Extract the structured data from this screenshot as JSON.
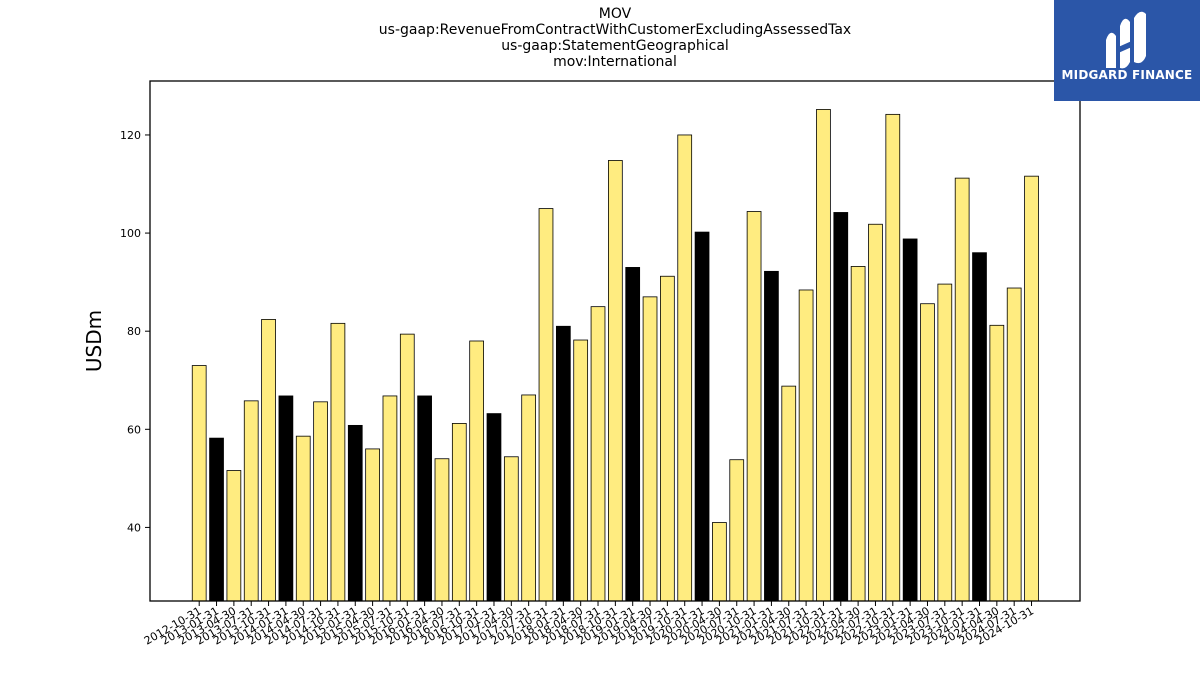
{
  "chart_data": {
    "type": "bar",
    "title_lines": [
      "MOV",
      "us-gaap:RevenueFromContractWithCustomerExcludingAssessedTax",
      "us-gaap:StatementGeographical",
      "mov:International"
    ],
    "xlabel": "",
    "ylabel": "USDm",
    "ylim": [
      25,
      131
    ],
    "yticks": [
      40,
      60,
      80,
      100,
      120
    ],
    "grid": false,
    "legend": "none",
    "colors": {
      "default": "#ffec80",
      "highlight": "#000000",
      "edge": "#000000"
    },
    "categories": [
      "2012-10-31",
      "2013-01-31",
      "2013-04-30",
      "2013-07-31",
      "2013-10-31",
      "2014-01-31",
      "2014-04-30",
      "2014-07-31",
      "2014-10-31",
      "2015-01-31",
      "2015-04-30",
      "2015-07-31",
      "2015-10-31",
      "2016-01-31",
      "2016-04-30",
      "2016-07-31",
      "2016-10-31",
      "2017-01-31",
      "2017-04-30",
      "2017-07-31",
      "2017-10-31",
      "2018-01-31",
      "2018-04-30",
      "2018-07-31",
      "2018-10-31",
      "2019-01-31",
      "2019-04-30",
      "2019-07-31",
      "2019-10-31",
      "2020-01-31",
      "2020-04-30",
      "2020-07-31",
      "2020-10-31",
      "2021-01-31",
      "2021-04-30",
      "2021-07-31",
      "2021-10-31",
      "2022-01-31",
      "2022-04-30",
      "2022-07-31",
      "2022-10-31",
      "2023-01-31",
      "2023-04-30",
      "2023-07-31",
      "2023-10-31",
      "2024-01-31",
      "2024-04-30",
      "2024-07-31",
      "2024-10-31"
    ],
    "values": [
      73.0,
      58.2,
      51.6,
      65.8,
      82.4,
      66.8,
      58.6,
      65.6,
      81.6,
      60.8,
      56.0,
      66.8,
      79.4,
      66.8,
      54.0,
      61.2,
      78.0,
      63.2,
      54.4,
      67.0,
      105.0,
      81.0,
      78.2,
      85.0,
      114.8,
      93.0,
      87.0,
      91.2,
      120.0,
      100.2,
      41.0,
      53.8,
      104.4,
      92.2,
      68.8,
      88.4,
      125.2,
      104.2,
      93.2,
      101.8,
      124.2,
      98.8,
      85.6,
      89.6,
      111.2,
      96.0,
      81.2,
      88.8,
      111.6
    ],
    "highlight": [
      false,
      true,
      false,
      false,
      false,
      true,
      false,
      false,
      false,
      true,
      false,
      false,
      false,
      true,
      false,
      false,
      false,
      true,
      false,
      false,
      false,
      true,
      false,
      false,
      false,
      true,
      false,
      false,
      false,
      true,
      false,
      false,
      false,
      true,
      false,
      false,
      false,
      true,
      false,
      false,
      false,
      true,
      false,
      false,
      false,
      true,
      false,
      false,
      false
    ]
  },
  "logo": {
    "text": "MIDGARD FINANCE",
    "icon": "midgard-logo-icon"
  }
}
